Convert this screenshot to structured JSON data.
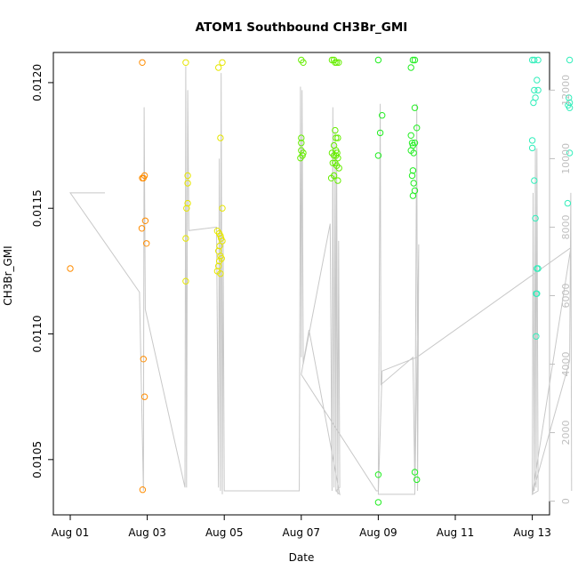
{
  "chart_data": {
    "type": "scatter",
    "title": "ATOM1 Southbound CH3Br_GMI",
    "xlabel": "Date",
    "ylabel": "CH3Br_GMI",
    "x_ticks": [
      "Aug 01",
      "Aug 03",
      "Aug 05",
      "Aug 07",
      "Aug 09",
      "Aug 11",
      "Aug 13"
    ],
    "x_range_days": [
      0,
      12.8
    ],
    "y_ticks": [
      "0.0105",
      "0.0110",
      "0.0115",
      "0.0120"
    ],
    "ylim": [
      0.01028,
      0.01212
    ],
    "y2_ticks": [
      "0",
      "2000",
      "4000",
      "6000",
      "8000",
      "10000",
      "12000"
    ],
    "y2lim": [
      -400,
      13100
    ],
    "grid": false,
    "colors": {
      "frame": "#000000",
      "secondary_line": "#c8c8c8",
      "secondary_axis": "#bfbfbf"
    },
    "series": [
      {
        "color": "#ff8c00",
        "points": [
          [
            0.0,
            0.01126
          ],
          [
            1.87,
            0.01208
          ],
          [
            1.87,
            0.01162
          ],
          [
            1.9,
            0.01162
          ],
          [
            1.93,
            0.01163
          ],
          [
            1.86,
            0.01142
          ],
          [
            1.95,
            0.01145
          ],
          [
            1.98,
            0.01136
          ],
          [
            1.9,
            0.0109
          ],
          [
            1.93,
            0.01075
          ],
          [
            1.88,
            0.01038
          ]
        ]
      },
      {
        "color": "#e6e600",
        "points": [
          [
            3.0,
            0.01208
          ],
          [
            3.05,
            0.01163
          ],
          [
            3.05,
            0.0116
          ],
          [
            3.05,
            0.01152
          ],
          [
            3.02,
            0.0115
          ],
          [
            3.0,
            0.01138
          ],
          [
            3.0,
            0.01121
          ],
          [
            3.85,
            0.01206
          ],
          [
            3.95,
            0.01208
          ],
          [
            3.9,
            0.01178
          ],
          [
            3.95,
            0.0115
          ],
          [
            3.82,
            0.01141
          ],
          [
            3.87,
            0.0114
          ],
          [
            3.9,
            0.01139
          ],
          [
            3.92,
            0.01138
          ],
          [
            3.95,
            0.01137
          ],
          [
            3.88,
            0.01135
          ],
          [
            3.85,
            0.01133
          ],
          [
            3.9,
            0.01131
          ],
          [
            3.93,
            0.0113
          ],
          [
            3.87,
            0.01129
          ],
          [
            3.85,
            0.01127
          ],
          [
            3.82,
            0.01125
          ],
          [
            3.9,
            0.01124
          ]
        ]
      },
      {
        "color": "#66ee00",
        "points": [
          [
            6.0,
            0.01209
          ],
          [
            6.05,
            0.01208
          ],
          [
            6.0,
            0.01178
          ],
          [
            6.0,
            0.01176
          ],
          [
            6.0,
            0.01173
          ],
          [
            6.05,
            0.01172
          ],
          [
            5.98,
            0.0117
          ],
          [
            6.03,
            0.01171
          ],
          [
            6.8,
            0.01209
          ],
          [
            6.85,
            0.01209
          ],
          [
            6.88,
            0.01208
          ],
          [
            6.92,
            0.01208
          ],
          [
            6.97,
            0.01208
          ],
          [
            6.88,
            0.01181
          ],
          [
            6.9,
            0.01178
          ],
          [
            6.95,
            0.01178
          ],
          [
            6.85,
            0.01175
          ],
          [
            6.9,
            0.01173
          ],
          [
            6.93,
            0.01172
          ],
          [
            6.8,
            0.01172
          ],
          [
            6.85,
            0.01171
          ],
          [
            6.9,
            0.01171
          ],
          [
            6.95,
            0.0117
          ],
          [
            6.82,
            0.01168
          ],
          [
            6.88,
            0.01168
          ],
          [
            6.92,
            0.01167
          ],
          [
            6.98,
            0.01166
          ],
          [
            6.85,
            0.01163
          ],
          [
            6.78,
            0.01162
          ],
          [
            6.95,
            0.01161
          ]
        ]
      },
      {
        "color": "#22ee22",
        "points": [
          [
            8.0,
            0.01209
          ],
          [
            8.85,
            0.01206
          ],
          [
            8.9,
            0.01209
          ],
          [
            8.95,
            0.01209
          ],
          [
            8.1,
            0.01187
          ],
          [
            8.05,
            0.0118
          ],
          [
            8.0,
            0.01171
          ],
          [
            8.95,
            0.0119
          ],
          [
            9.0,
            0.01182
          ],
          [
            8.85,
            0.01179
          ],
          [
            8.88,
            0.01176
          ],
          [
            8.9,
            0.01175
          ],
          [
            8.85,
            0.01173
          ],
          [
            8.92,
            0.01172
          ],
          [
            8.95,
            0.01176
          ],
          [
            8.9,
            0.01165
          ],
          [
            8.88,
            0.01163
          ],
          [
            8.92,
            0.0116
          ],
          [
            8.95,
            0.01157
          ],
          [
            8.9,
            0.01155
          ],
          [
            8.0,
            0.01044
          ],
          [
            8.0,
            0.01033
          ],
          [
            8.95,
            0.01045
          ],
          [
            9.0,
            0.01042
          ]
        ]
      },
      {
        "color": "#33eebb",
        "points": [
          [
            12.0,
            0.01209
          ],
          [
            12.05,
            0.01209
          ],
          [
            12.15,
            0.01209
          ],
          [
            12.97,
            0.01209
          ],
          [
            12.12,
            0.01201
          ],
          [
            12.05,
            0.01197
          ],
          [
            12.15,
            0.01197
          ],
          [
            12.08,
            0.01194
          ],
          [
            12.03,
            0.01192
          ],
          [
            12.95,
            0.01194
          ],
          [
            12.97,
            0.01192
          ],
          [
            12.93,
            0.01191
          ],
          [
            12.97,
            0.0119
          ],
          [
            12.0,
            0.01177
          ],
          [
            12.0,
            0.01174
          ],
          [
            12.97,
            0.01172
          ],
          [
            12.05,
            0.01161
          ],
          [
            12.92,
            0.01152
          ],
          [
            12.08,
            0.01146
          ],
          [
            12.12,
            0.01126
          ],
          [
            12.15,
            0.01126
          ],
          [
            12.1,
            0.01116
          ],
          [
            12.12,
            0.01116
          ],
          [
            12.1,
            0.01099
          ]
        ]
      }
    ],
    "secondary_line": [
      [
        0.0,
        9000
      ],
      [
        0.9,
        9000
      ],
      [
        0.0,
        9000
      ],
      [
        1.8,
        6100
      ],
      [
        1.9,
        300
      ],
      [
        1.92,
        11500
      ],
      [
        1.95,
        5600
      ],
      [
        2.98,
        400
      ],
      [
        3.0,
        12700
      ],
      [
        3.02,
        400
      ],
      [
        3.05,
        12000
      ],
      [
        3.08,
        7900
      ],
      [
        3.8,
        8000
      ],
      [
        3.85,
        400
      ],
      [
        3.87,
        10000
      ],
      [
        3.9,
        300
      ],
      [
        3.92,
        12500
      ],
      [
        3.95,
        200
      ],
      [
        3.97,
        7700
      ],
      [
        4.0,
        300
      ],
      [
        5.95,
        300
      ],
      [
        5.98,
        12100
      ],
      [
        6.0,
        4200
      ],
      [
        6.02,
        12000
      ],
      [
        6.05,
        4000
      ],
      [
        6.75,
        8100
      ],
      [
        6.8,
        300
      ],
      [
        6.82,
        11500
      ],
      [
        6.85,
        400
      ],
      [
        6.88,
        10800
      ],
      [
        6.9,
        300
      ],
      [
        6.92,
        10000
      ],
      [
        6.95,
        200
      ],
      [
        6.97,
        7600
      ],
      [
        7.0,
        400
      ],
      [
        6.9,
        300
      ],
      [
        7.0,
        200
      ],
      [
        6.2,
        5000
      ],
      [
        6.0,
        3700
      ],
      [
        7.95,
        300
      ],
      [
        8.0,
        300
      ],
      [
        8.05,
        11600
      ],
      [
        8.07,
        3400
      ],
      [
        8.9,
        4200
      ],
      [
        8.95,
        400
      ],
      [
        9.0,
        11600
      ],
      [
        9.02,
        300
      ],
      [
        9.05,
        7500
      ],
      [
        8.95,
        200
      ],
      [
        8.0,
        200
      ],
      [
        8.1,
        3800
      ],
      [
        9.0,
        4200
      ],
      [
        13.0,
        7400
      ],
      [
        12.0,
        200
      ],
      [
        12.02,
        9000
      ],
      [
        12.05,
        300
      ],
      [
        12.08,
        10300
      ],
      [
        12.1,
        400
      ],
      [
        12.12,
        10300
      ],
      [
        12.15,
        300
      ],
      [
        12.0,
        200
      ],
      [
        12.97,
        4100
      ],
      [
        13.0,
        9000
      ],
      [
        13.02,
        300
      ]
    ]
  }
}
